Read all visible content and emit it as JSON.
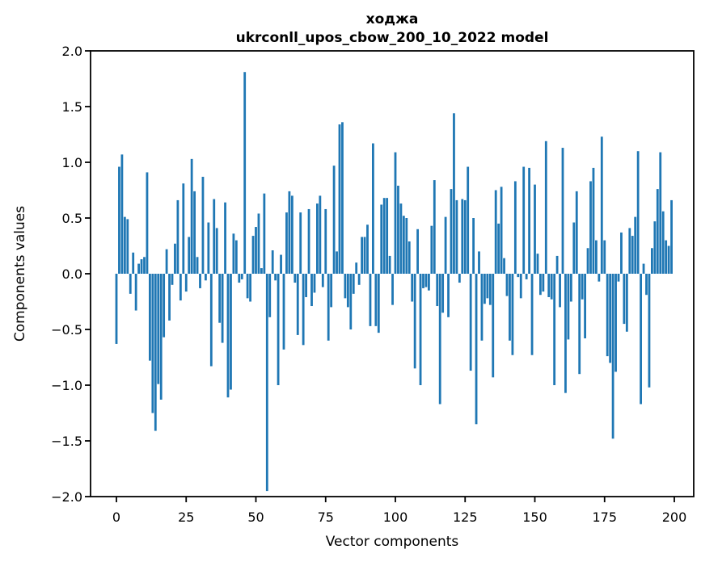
{
  "chart_data": {
    "type": "bar",
    "title": "ходжа",
    "subtitle": "ukrconll_upos_cbow_200_10_2022 model",
    "xlabel": "Vector components",
    "ylabel": "Components values",
    "x_ticks": [
      0,
      25,
      50,
      75,
      100,
      125,
      150,
      175,
      200
    ],
    "y_ticks": [
      2.0,
      1.5,
      1.0,
      0.5,
      0.0,
      -0.5,
      -1.0,
      -1.5,
      -2.0
    ],
    "ylim": [
      -2.0,
      2.0
    ],
    "xlim": [
      -9.3,
      207.0
    ],
    "grid": false,
    "legend_position": "none",
    "bar_color": "#1f77b4",
    "axis_color": "#000000",
    "n_components": 200,
    "values": [
      -0.63,
      0.96,
      1.07,
      0.51,
      0.49,
      -0.18,
      0.19,
      -0.33,
      0.09,
      0.13,
      0.15,
      0.91,
      -0.78,
      -1.25,
      -1.41,
      -0.99,
      -1.13,
      -0.57,
      0.22,
      -0.42,
      -0.1,
      0.27,
      0.66,
      -0.24,
      0.81,
      -0.16,
      0.33,
      1.03,
      0.74,
      0.15,
      -0.13,
      0.87,
      -0.06,
      0.46,
      -0.83,
      0.67,
      0.41,
      -0.44,
      -0.62,
      0.64,
      -1.11,
      -1.04,
      0.36,
      0.3,
      -0.08,
      -0.05,
      1.81,
      -0.22,
      -0.25,
      0.34,
      0.42,
      0.54,
      0.05,
      0.72,
      -1.95,
      -0.39,
      0.21,
      -0.06,
      -1.0,
      0.17,
      -0.68,
      0.55,
      0.74,
      0.7,
      -0.08,
      -0.55,
      0.55,
      -0.64,
      -0.21,
      0.58,
      -0.29,
      -0.17,
      0.63,
      0.7,
      -0.12,
      0.58,
      -0.6,
      -0.3,
      0.97,
      0.2,
      1.34,
      1.36,
      -0.22,
      -0.3,
      -0.5,
      -0.18,
      0.1,
      -0.1,
      0.33,
      0.33,
      0.44,
      -0.47,
      1.17,
      -0.47,
      -0.53,
      0.62,
      0.68,
      0.68,
      0.16,
      -0.28,
      1.09,
      0.79,
      0.63,
      0.52,
      0.5,
      0.29,
      -0.25,
      -0.85,
      0.4,
      -1.0,
      -0.13,
      -0.12,
      -0.15,
      0.43,
      0.84,
      -0.29,
      -1.17,
      -0.35,
      0.51,
      -0.39,
      0.76,
      1.44,
      0.66,
      -0.08,
      0.67,
      0.66,
      0.96,
      -0.87,
      0.5,
      -1.35,
      0.2,
      -0.6,
      -0.27,
      -0.22,
      -0.28,
      -0.93,
      0.75,
      0.45,
      0.78,
      0.14,
      -0.2,
      -0.6,
      -0.73,
      0.83,
      -0.03,
      -0.22,
      0.96,
      -0.05,
      0.95,
      -0.73,
      0.8,
      0.18,
      -0.19,
      -0.16,
      1.19,
      -0.21,
      -0.23,
      -1.0,
      0.16,
      -0.3,
      1.13,
      -1.07,
      -0.59,
      -0.25,
      0.46,
      0.74,
      -0.9,
      -0.23,
      -0.58,
      0.23,
      0.83,
      0.95,
      0.3,
      -0.07,
      1.23,
      0.3,
      -0.74,
      -0.8,
      -1.48,
      -0.88,
      -0.07,
      0.37,
      -0.45,
      -0.52,
      0.41,
      0.34,
      0.51,
      1.1,
      -1.17,
      0.09,
      -0.19,
      -1.02,
      0.23,
      0.47,
      0.76,
      1.09,
      0.56,
      0.3,
      0.25,
      0.66
    ]
  }
}
